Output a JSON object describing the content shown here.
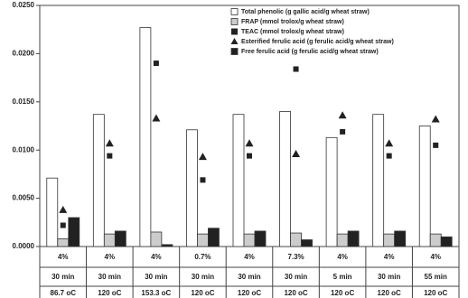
{
  "chart_data": {
    "type": "grouped-bar-marker",
    "categories": [
      [
        "4%",
        "30 min",
        "86.7 oC"
      ],
      [
        "4%",
        "30 min",
        "120 oC"
      ],
      [
        "4%",
        "30 min",
        "153.3 oC"
      ],
      [
        "0.7%",
        "30 min",
        "120 oC"
      ],
      [
        "4%",
        "30 min",
        "120 oC"
      ],
      [
        "7.3%",
        "30 min",
        "120 oC"
      ],
      [
        "4%",
        "5 min",
        "120 oC"
      ],
      [
        "4%",
        "30 min",
        "120 oC"
      ],
      [
        "4%",
        "55 min",
        "120 oC"
      ]
    ],
    "series": [
      {
        "name": "Total phenolic (g gallic acid/g wheat straw)",
        "marker": "bar",
        "color": "#ffffff",
        "values": [
          0.0071,
          0.0137,
          0.0227,
          0.0121,
          0.0137,
          0.014,
          0.0113,
          0.0137,
          0.0125
        ]
      },
      {
        "name": "FRAP (mmol trolox/g wheat straw)",
        "marker": "bar",
        "color": "#cccccc",
        "values": [
          0.0008,
          0.0013,
          0.0015,
          0.0013,
          0.0013,
          0.0014,
          0.0013,
          0.0013,
          0.0013
        ]
      },
      {
        "name": "TEAC (mmol trolox/g wheat straw)",
        "marker": "square",
        "color": "#222222",
        "values": [
          0.0022,
          0.0094,
          0.019,
          0.0069,
          0.0094,
          0.0184,
          0.0119,
          0.0094,
          0.0105
        ]
      },
      {
        "name": "Esterified ferulic acid (g ferulic acid/g wheat straw)",
        "marker": "triangle",
        "color": "#222222",
        "values": [
          0.0038,
          0.0107,
          0.0133,
          0.0093,
          0.0107,
          0.0096,
          0.0136,
          0.0107,
          0.0132
        ]
      },
      {
        "name": "Free ferulic acid (g ferulic acid/g wheat straw)",
        "marker": "bar",
        "color": "#222222",
        "values": [
          0.003,
          0.0016,
          0.0002,
          0.0019,
          0.0016,
          0.0007,
          0.0016,
          0.0016,
          0.001
        ]
      }
    ],
    "ylim": [
      0,
      0.025
    ],
    "yticks": [
      {
        "value": 0,
        "label": "0.0000"
      },
      {
        "value": 0.005,
        "label": "0.0050"
      },
      {
        "value": 0.01,
        "label": "0.0100"
      },
      {
        "value": 0.015,
        "label": "0.0150"
      },
      {
        "value": 0.02,
        "label": "0.0200"
      },
      {
        "value": 0.025,
        "label": "0.0250"
      }
    ],
    "legend": "upper right"
  }
}
